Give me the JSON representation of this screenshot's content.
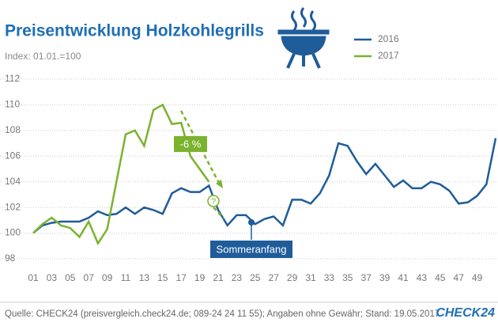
{
  "chart_data": {
    "type": "line",
    "title": "Preisentwicklung Holzkohlegrills",
    "subtitle": "Index: 01.01.=100",
    "xlim": [
      1,
      51
    ],
    "ylim": [
      98,
      112
    ],
    "yticks": [
      98,
      100,
      102,
      104,
      106,
      108,
      110,
      112
    ],
    "grid": true,
    "xticks": [
      {
        "value": 1,
        "label": "01"
      },
      {
        "value": 3,
        "label": "03"
      },
      {
        "value": 5,
        "label": "05"
      },
      {
        "value": 7,
        "label": "07"
      },
      {
        "value": 9,
        "label": "09"
      },
      {
        "value": 11,
        "label": "11"
      },
      {
        "value": 13,
        "label": "13"
      },
      {
        "value": 15,
        "label": "15"
      },
      {
        "value": 17,
        "label": "17"
      },
      {
        "value": 19,
        "label": "19"
      },
      {
        "value": 21,
        "label": "21"
      },
      {
        "value": 23,
        "label": "23"
      },
      {
        "value": 25,
        "label": "25"
      },
      {
        "value": 27,
        "label": "27"
      },
      {
        "value": 29,
        "label": "29"
      },
      {
        "value": 31,
        "label": "31"
      },
      {
        "value": 33,
        "label": "33"
      },
      {
        "value": 35,
        "label": "35"
      },
      {
        "value": 37,
        "label": "37"
      },
      {
        "value": 39,
        "label": "39"
      },
      {
        "value": 41,
        "label": "41"
      },
      {
        "value": 43,
        "label": "43"
      },
      {
        "value": 45,
        "label": "45"
      },
      {
        "value": 47,
        "label": "47"
      },
      {
        "value": 49,
        "label": "49"
      }
    ],
    "x": [
      1,
      2,
      3,
      4,
      5,
      6,
      7,
      8,
      9,
      10,
      11,
      12,
      13,
      14,
      15,
      16,
      17,
      18,
      19,
      20,
      21,
      22,
      23,
      24,
      25,
      26,
      27,
      28,
      29,
      30,
      31,
      32,
      33,
      34,
      35,
      36,
      37,
      38,
      39,
      40,
      41,
      42,
      43,
      44,
      45,
      46,
      47,
      48,
      49,
      50,
      51
    ],
    "series": [
      {
        "name": "2016",
        "color": "#1f5c9a",
        "values": [
          100.0,
          100.6,
          100.8,
          100.9,
          100.9,
          100.9,
          101.2,
          101.7,
          101.4,
          101.5,
          102.0,
          101.5,
          102.0,
          101.8,
          101.5,
          103.1,
          103.5,
          103.2,
          103.2,
          103.7,
          101.8,
          100.6,
          101.4,
          101.4,
          100.7,
          101.1,
          101.3,
          100.6,
          102.6,
          102.6,
          102.3,
          103.1,
          104.5,
          107.0,
          106.8,
          105.6,
          104.6,
          105.4,
          104.5,
          103.6,
          104.1,
          103.5,
          103.5,
          104.0,
          103.8,
          103.3,
          102.3,
          102.4,
          102.9,
          103.8,
          107.4
        ]
      },
      {
        "name": "2017",
        "color": "#7ab32e",
        "values": [
          100.0,
          100.7,
          101.2,
          100.6,
          100.4,
          99.7,
          100.9,
          99.2,
          100.3,
          104.0,
          107.7,
          108.0,
          106.8,
          109.6,
          110.0,
          108.5,
          108.6,
          106.0,
          105.0,
          104.0,
          null,
          null,
          null,
          null,
          null,
          null,
          null,
          null,
          null,
          null,
          null,
          null,
          null,
          null,
          null,
          null,
          null,
          null,
          null,
          null,
          null,
          null,
          null,
          null,
          null,
          null,
          null,
          null,
          null,
          null,
          null
        ]
      }
    ],
    "annotations": {
      "change": "-6 %",
      "question": "?",
      "marker": "Sommeranfang"
    },
    "source": "Quelle: CHECK24 (preisvergleich.check24.de; 089-24 24 11 55); Angaben ohne Gewähr; Stand: 19.05.2017",
    "logo": "CHECK24"
  }
}
